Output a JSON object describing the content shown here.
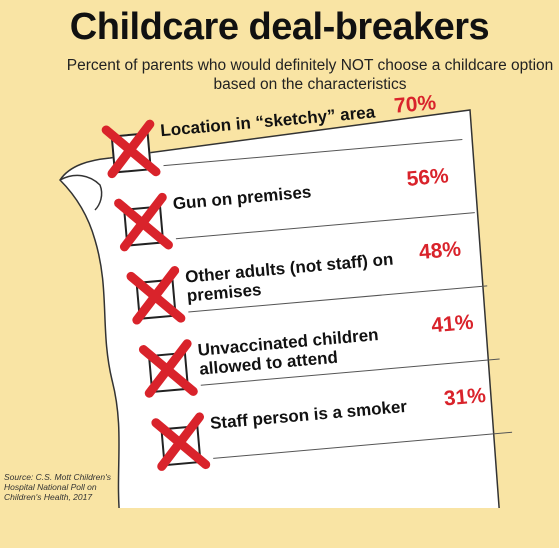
{
  "title": "Childcare deal-breakers",
  "subtitle": "Percent of parents who would definitely NOT choose a childcare option\nbased on the characteristics",
  "source": "Source: C.S. Mott Children's\nHospital National Poll on\nChildren's Health, 2017",
  "colors": {
    "background": "#f9e4a4",
    "accent": "#d9232b",
    "paper": "#ffffff"
  },
  "chart_data": {
    "type": "table",
    "title": "Childcare deal-breakers",
    "subtitle": "Percent of parents who would definitely NOT choose a childcare option based on the characteristics",
    "rows": [
      {
        "label": "Location in “sketchy” area",
        "value": 70,
        "display": "70%"
      },
      {
        "label": "Gun on premises",
        "value": 56,
        "display": "56%"
      },
      {
        "label": "Other adults (not staff) on premises",
        "value": 48,
        "display": "48%"
      },
      {
        "label": "Unvaccinated children allowed to attend",
        "value": 41,
        "display": "41%"
      },
      {
        "label": "Staff person is a smoker",
        "value": 31,
        "display": "31%"
      }
    ]
  }
}
